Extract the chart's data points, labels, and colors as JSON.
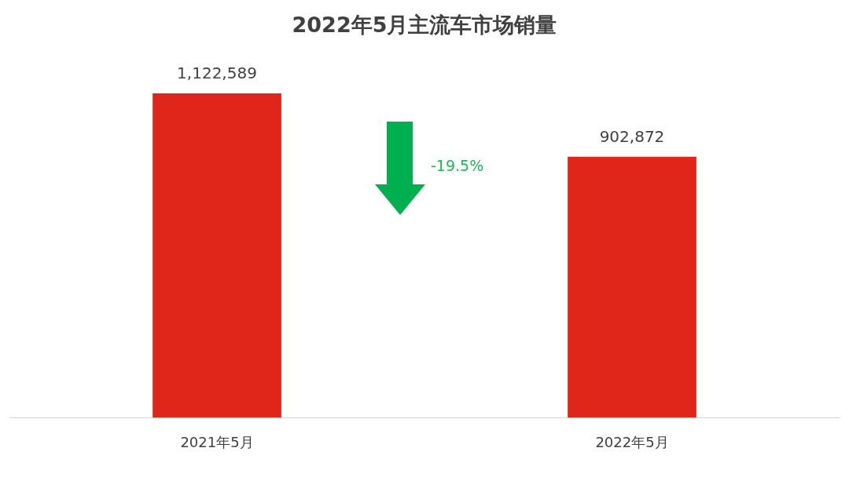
{
  "chart_data": {
    "type": "bar",
    "title": "2022年5月主流车市场销量",
    "categories": [
      "2021年5月",
      "2022年5月"
    ],
    "values": [
      1122589,
      902872
    ],
    "color": "#e0251b",
    "value_labels": [
      "1,122,589",
      "902,872"
    ],
    "grid": false,
    "legend": false,
    "annotations": [
      "-19.5%"
    ]
  }
}
